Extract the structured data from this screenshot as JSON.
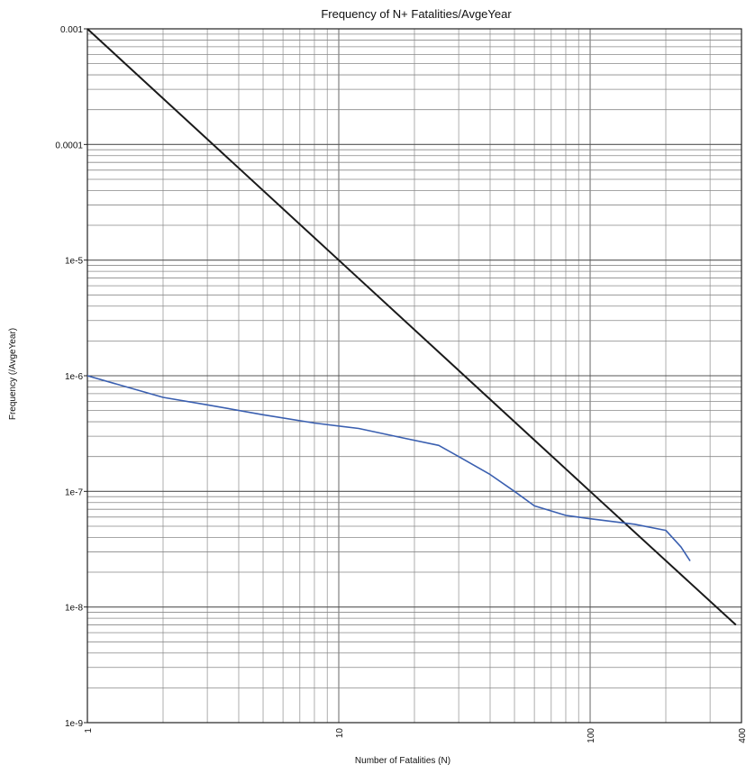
{
  "chart_data": {
    "type": "line",
    "title": "Frequency of N+ Fatalities/AvgeYear",
    "xlabel": "Number of Fatalities (N)",
    "ylabel": "Frequency (/AvgeYear)",
    "x_scale": "log",
    "y_scale": "log",
    "xlim": [
      1,
      400
    ],
    "ylim": [
      1e-09,
      0.001
    ],
    "x_ticks": [
      {
        "value": 1,
        "label": "1"
      },
      {
        "value": 10,
        "label": "10"
      },
      {
        "value": 100,
        "label": "100"
      },
      {
        "value": 400,
        "label": "400"
      }
    ],
    "y_ticks": [
      {
        "value": 0.001,
        "label": "0.001"
      },
      {
        "value": 0.0001,
        "label": "0.0001"
      },
      {
        "value": 1e-05,
        "label": "1e-5"
      },
      {
        "value": 1e-06,
        "label": "1e-6"
      },
      {
        "value": 1e-07,
        "label": "1e-7"
      },
      {
        "value": 1e-08,
        "label": "1e-8"
      },
      {
        "value": 1e-09,
        "label": "1e-9"
      }
    ],
    "grid": true,
    "series": [
      {
        "color": "#1a1a1a",
        "x": [
          1,
          10,
          100,
          380
        ],
        "y": [
          0.001,
          1e-05,
          1e-07,
          7e-09
        ]
      },
      {
        "color": "#3a5fb0",
        "x": [
          1,
          2,
          3,
          5,
          8,
          12,
          18,
          25,
          30,
          40,
          50,
          60,
          80,
          100,
          150,
          200,
          230,
          250
        ],
        "y": [
          1e-06,
          6.5e-07,
          5.6e-07,
          4.6e-07,
          3.9e-07,
          3.5e-07,
          2.9e-07,
          2.5e-07,
          2e-07,
          1.4e-07,
          1e-07,
          7.5e-08,
          6.2e-08,
          5.8e-08,
          5.2e-08,
          4.6e-08,
          3.3e-08,
          2.5e-08
        ]
      }
    ]
  }
}
